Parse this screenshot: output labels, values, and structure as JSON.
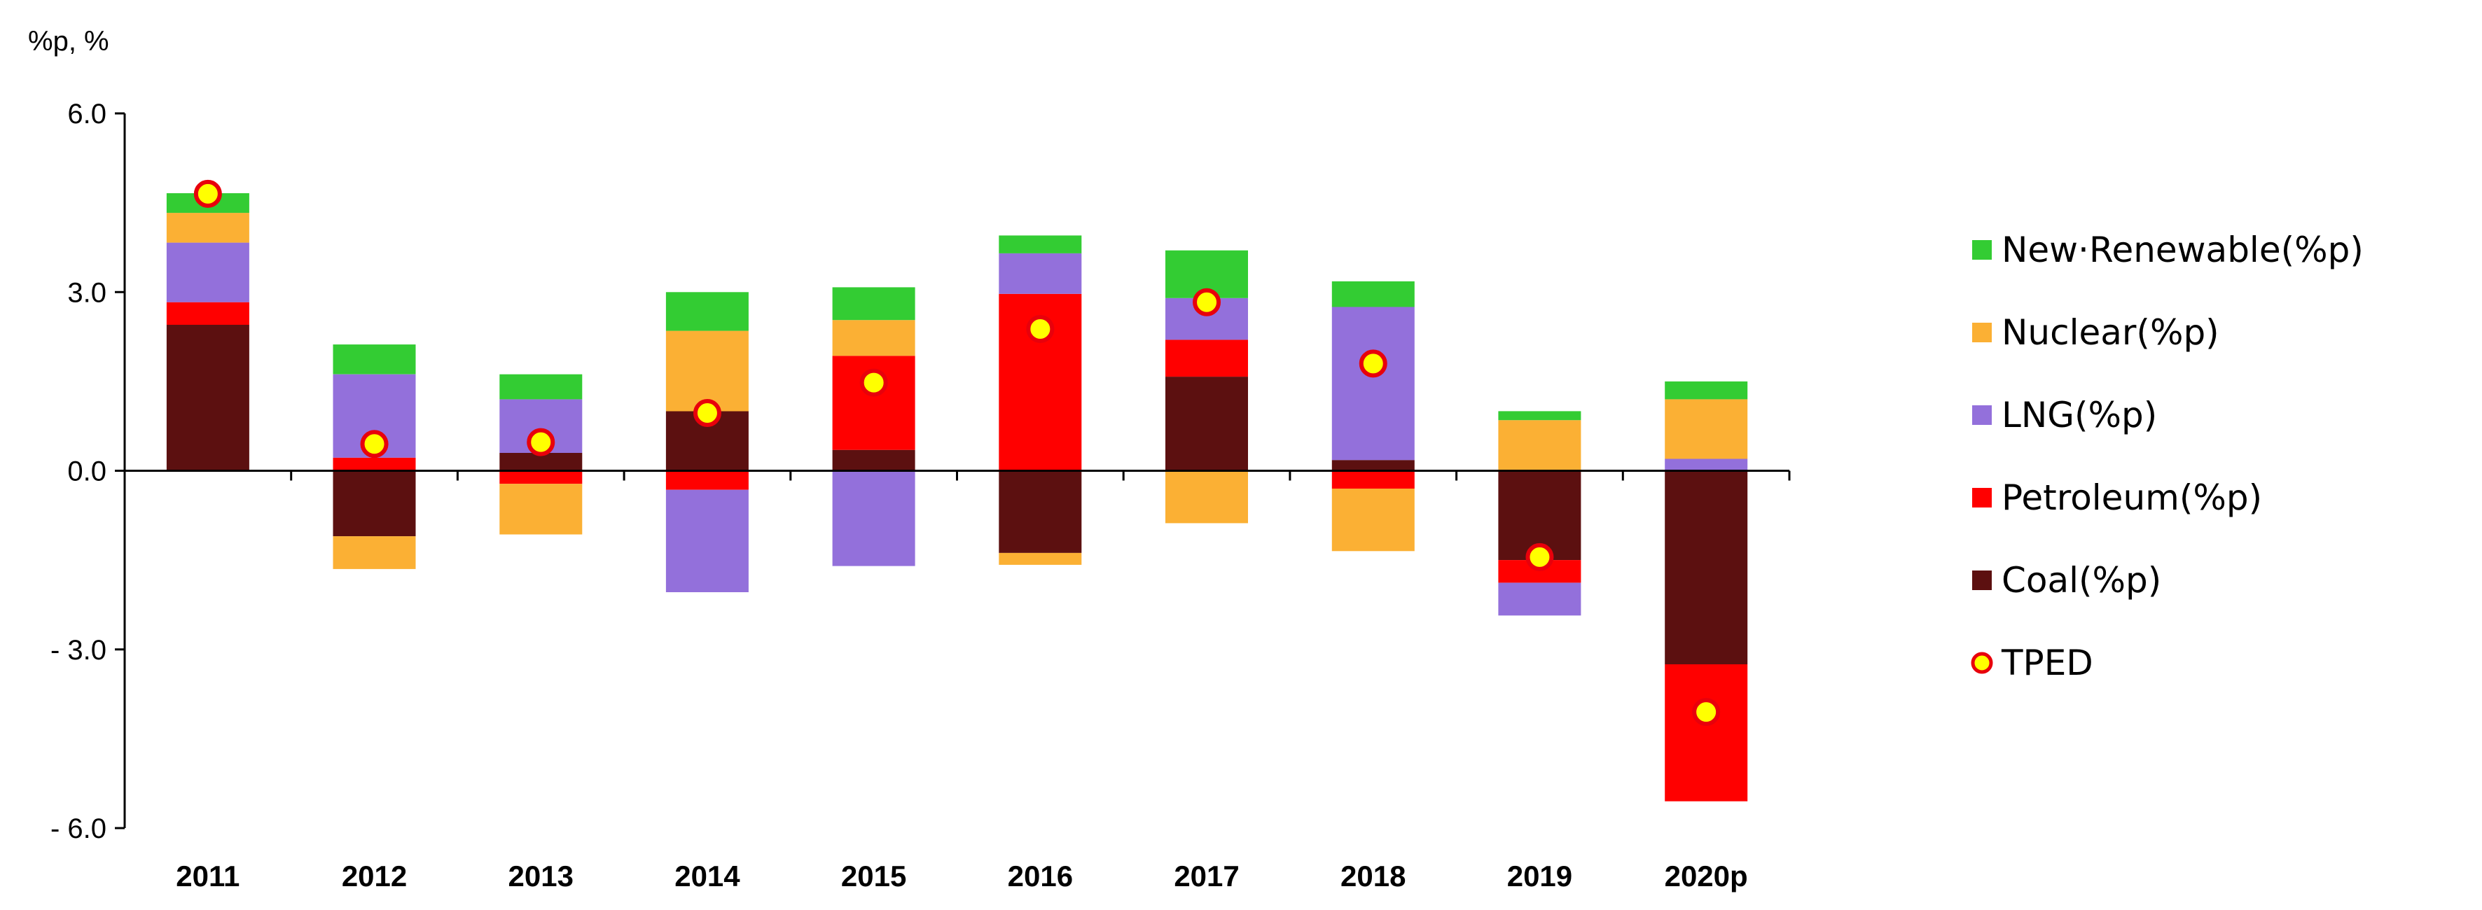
{
  "chart_data": {
    "type": "bar",
    "stacked": true,
    "y_unit_label": "%p, %",
    "ylim": [
      -6.0,
      6.0
    ],
    "y_ticks": [
      6.0,
      3.0,
      0.0,
      -3.0,
      -6.0
    ],
    "y_tick_labels": [
      "6.0",
      "3.0",
      "0.0",
      "- 3.0",
      "- 6.0"
    ],
    "grid": false,
    "legend_position": "right",
    "categories": [
      "2011",
      "2012",
      "2013",
      "2014",
      "2015",
      "2016",
      "2017",
      "2018",
      "2019",
      "2020p"
    ],
    "series": [
      {
        "name": "Coal(%p)",
        "kind": "bar",
        "color": "#5C1010",
        "values": [
          2.45,
          -1.1,
          0.3,
          1.0,
          0.35,
          -1.38,
          1.58,
          0.18,
          -1.5,
          -3.25
        ]
      },
      {
        "name": "Petroleum(%p)",
        "kind": "bar",
        "color": "#FF0000",
        "values": [
          0.38,
          0.22,
          -0.22,
          -0.32,
          1.58,
          2.97,
          0.62,
          -0.3,
          -0.38,
          -2.3
        ]
      },
      {
        "name": "LNG(%p)",
        "kind": "bar",
        "color": "#9370DB",
        "values": [
          1.0,
          1.4,
          0.9,
          -1.72,
          -1.6,
          0.68,
          0.7,
          2.57,
          -0.55,
          0.2
        ]
      },
      {
        "name": "Nuclear(%p)",
        "kind": "bar",
        "color": "#FBB034",
        "values": [
          0.5,
          -0.55,
          -0.85,
          1.35,
          0.6,
          -0.2,
          -0.88,
          -1.05,
          0.85,
          1.0
        ]
      },
      {
        "name": "New·Renewable(%p)",
        "kind": "bar",
        "color": "#33CC33",
        "values": [
          0.33,
          0.5,
          0.42,
          0.65,
          0.55,
          0.3,
          0.8,
          0.43,
          0.15,
          0.3
        ]
      },
      {
        "name": "TPED",
        "kind": "scatter",
        "color": "#FFFF00",
        "edge_color": "#E8000B",
        "values": [
          4.65,
          0.45,
          0.48,
          0.97,
          1.48,
          2.38,
          2.83,
          1.8,
          -1.45,
          -4.05
        ]
      }
    ],
    "legend_order": [
      "New·Renewable(%p)",
      "Nuclear(%p)",
      "LNG(%p)",
      "Petroleum(%p)",
      "Coal(%p)",
      "TPED"
    ]
  }
}
